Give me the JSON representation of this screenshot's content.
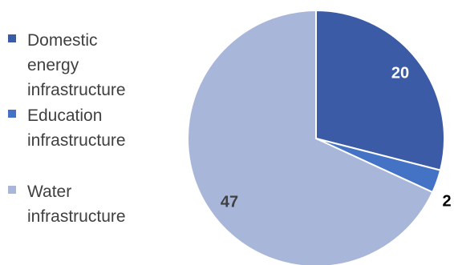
{
  "chart_data": {
    "type": "pie",
    "title": "",
    "legend_position": "left",
    "slices": [
      {
        "label": "Domestic energy infrastructure",
        "value": 20,
        "color": "#3b5ba6",
        "label_color": "#ffffff"
      },
      {
        "label": "Education infrastructure",
        "value": 2,
        "color": "#4472c4",
        "label_color": "#000000"
      },
      {
        "label": "Water infrastructure",
        "value": 47,
        "color": "#a8b6da",
        "label_color": "#404040"
      }
    ]
  },
  "legend": {
    "items": [
      {
        "line1": "Domestic",
        "line2": "energy",
        "line3": "infrastructure"
      },
      {
        "line1": "Education",
        "line2": "infrastructure"
      },
      {
        "line1": "Water",
        "line2": "infrastructure"
      }
    ]
  }
}
